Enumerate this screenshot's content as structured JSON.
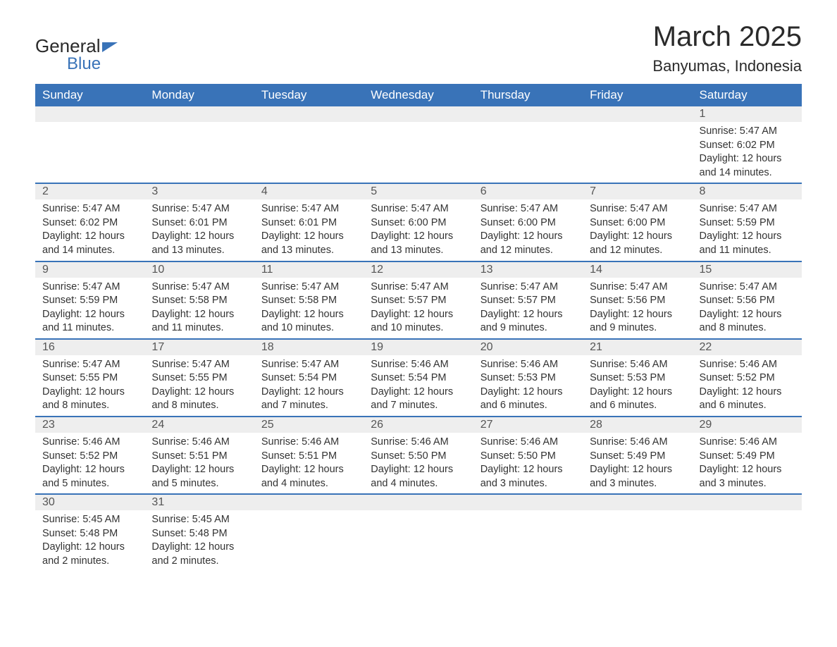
{
  "logo": {
    "general": "General",
    "blue": "Blue"
  },
  "title": "March 2025",
  "location": "Banyumas, Indonesia",
  "dayHeaders": [
    "Sunday",
    "Monday",
    "Tuesday",
    "Wednesday",
    "Thursday",
    "Friday",
    "Saturday"
  ],
  "colors": {
    "headerBg": "#3973b8",
    "headerText": "#ffffff",
    "dateBg": "#eeeeee",
    "textColor": "#333333",
    "borderColor": "#3973b8"
  },
  "weeks": [
    [
      {
        "date": "",
        "sunrise": "",
        "sunset": "",
        "daylight": ""
      },
      {
        "date": "",
        "sunrise": "",
        "sunset": "",
        "daylight": ""
      },
      {
        "date": "",
        "sunrise": "",
        "sunset": "",
        "daylight": ""
      },
      {
        "date": "",
        "sunrise": "",
        "sunset": "",
        "daylight": ""
      },
      {
        "date": "",
        "sunrise": "",
        "sunset": "",
        "daylight": ""
      },
      {
        "date": "",
        "sunrise": "",
        "sunset": "",
        "daylight": ""
      },
      {
        "date": "1",
        "sunrise": "Sunrise: 5:47 AM",
        "sunset": "Sunset: 6:02 PM",
        "daylight": "Daylight: 12 hours and 14 minutes."
      }
    ],
    [
      {
        "date": "2",
        "sunrise": "Sunrise: 5:47 AM",
        "sunset": "Sunset: 6:02 PM",
        "daylight": "Daylight: 12 hours and 14 minutes."
      },
      {
        "date": "3",
        "sunrise": "Sunrise: 5:47 AM",
        "sunset": "Sunset: 6:01 PM",
        "daylight": "Daylight: 12 hours and 13 minutes."
      },
      {
        "date": "4",
        "sunrise": "Sunrise: 5:47 AM",
        "sunset": "Sunset: 6:01 PM",
        "daylight": "Daylight: 12 hours and 13 minutes."
      },
      {
        "date": "5",
        "sunrise": "Sunrise: 5:47 AM",
        "sunset": "Sunset: 6:00 PM",
        "daylight": "Daylight: 12 hours and 13 minutes."
      },
      {
        "date": "6",
        "sunrise": "Sunrise: 5:47 AM",
        "sunset": "Sunset: 6:00 PM",
        "daylight": "Daylight: 12 hours and 12 minutes."
      },
      {
        "date": "7",
        "sunrise": "Sunrise: 5:47 AM",
        "sunset": "Sunset: 6:00 PM",
        "daylight": "Daylight: 12 hours and 12 minutes."
      },
      {
        "date": "8",
        "sunrise": "Sunrise: 5:47 AM",
        "sunset": "Sunset: 5:59 PM",
        "daylight": "Daylight: 12 hours and 11 minutes."
      }
    ],
    [
      {
        "date": "9",
        "sunrise": "Sunrise: 5:47 AM",
        "sunset": "Sunset: 5:59 PM",
        "daylight": "Daylight: 12 hours and 11 minutes."
      },
      {
        "date": "10",
        "sunrise": "Sunrise: 5:47 AM",
        "sunset": "Sunset: 5:58 PM",
        "daylight": "Daylight: 12 hours and 11 minutes."
      },
      {
        "date": "11",
        "sunrise": "Sunrise: 5:47 AM",
        "sunset": "Sunset: 5:58 PM",
        "daylight": "Daylight: 12 hours and 10 minutes."
      },
      {
        "date": "12",
        "sunrise": "Sunrise: 5:47 AM",
        "sunset": "Sunset: 5:57 PM",
        "daylight": "Daylight: 12 hours and 10 minutes."
      },
      {
        "date": "13",
        "sunrise": "Sunrise: 5:47 AM",
        "sunset": "Sunset: 5:57 PM",
        "daylight": "Daylight: 12 hours and 9 minutes."
      },
      {
        "date": "14",
        "sunrise": "Sunrise: 5:47 AM",
        "sunset": "Sunset: 5:56 PM",
        "daylight": "Daylight: 12 hours and 9 minutes."
      },
      {
        "date": "15",
        "sunrise": "Sunrise: 5:47 AM",
        "sunset": "Sunset: 5:56 PM",
        "daylight": "Daylight: 12 hours and 8 minutes."
      }
    ],
    [
      {
        "date": "16",
        "sunrise": "Sunrise: 5:47 AM",
        "sunset": "Sunset: 5:55 PM",
        "daylight": "Daylight: 12 hours and 8 minutes."
      },
      {
        "date": "17",
        "sunrise": "Sunrise: 5:47 AM",
        "sunset": "Sunset: 5:55 PM",
        "daylight": "Daylight: 12 hours and 8 minutes."
      },
      {
        "date": "18",
        "sunrise": "Sunrise: 5:47 AM",
        "sunset": "Sunset: 5:54 PM",
        "daylight": "Daylight: 12 hours and 7 minutes."
      },
      {
        "date": "19",
        "sunrise": "Sunrise: 5:46 AM",
        "sunset": "Sunset: 5:54 PM",
        "daylight": "Daylight: 12 hours and 7 minutes."
      },
      {
        "date": "20",
        "sunrise": "Sunrise: 5:46 AM",
        "sunset": "Sunset: 5:53 PM",
        "daylight": "Daylight: 12 hours and 6 minutes."
      },
      {
        "date": "21",
        "sunrise": "Sunrise: 5:46 AM",
        "sunset": "Sunset: 5:53 PM",
        "daylight": "Daylight: 12 hours and 6 minutes."
      },
      {
        "date": "22",
        "sunrise": "Sunrise: 5:46 AM",
        "sunset": "Sunset: 5:52 PM",
        "daylight": "Daylight: 12 hours and 6 minutes."
      }
    ],
    [
      {
        "date": "23",
        "sunrise": "Sunrise: 5:46 AM",
        "sunset": "Sunset: 5:52 PM",
        "daylight": "Daylight: 12 hours and 5 minutes."
      },
      {
        "date": "24",
        "sunrise": "Sunrise: 5:46 AM",
        "sunset": "Sunset: 5:51 PM",
        "daylight": "Daylight: 12 hours and 5 minutes."
      },
      {
        "date": "25",
        "sunrise": "Sunrise: 5:46 AM",
        "sunset": "Sunset: 5:51 PM",
        "daylight": "Daylight: 12 hours and 4 minutes."
      },
      {
        "date": "26",
        "sunrise": "Sunrise: 5:46 AM",
        "sunset": "Sunset: 5:50 PM",
        "daylight": "Daylight: 12 hours and 4 minutes."
      },
      {
        "date": "27",
        "sunrise": "Sunrise: 5:46 AM",
        "sunset": "Sunset: 5:50 PM",
        "daylight": "Daylight: 12 hours and 3 minutes."
      },
      {
        "date": "28",
        "sunrise": "Sunrise: 5:46 AM",
        "sunset": "Sunset: 5:49 PM",
        "daylight": "Daylight: 12 hours and 3 minutes."
      },
      {
        "date": "29",
        "sunrise": "Sunrise: 5:46 AM",
        "sunset": "Sunset: 5:49 PM",
        "daylight": "Daylight: 12 hours and 3 minutes."
      }
    ],
    [
      {
        "date": "30",
        "sunrise": "Sunrise: 5:45 AM",
        "sunset": "Sunset: 5:48 PM",
        "daylight": "Daylight: 12 hours and 2 minutes."
      },
      {
        "date": "31",
        "sunrise": "Sunrise: 5:45 AM",
        "sunset": "Sunset: 5:48 PM",
        "daylight": "Daylight: 12 hours and 2 minutes."
      },
      {
        "date": "",
        "sunrise": "",
        "sunset": "",
        "daylight": ""
      },
      {
        "date": "",
        "sunrise": "",
        "sunset": "",
        "daylight": ""
      },
      {
        "date": "",
        "sunrise": "",
        "sunset": "",
        "daylight": ""
      },
      {
        "date": "",
        "sunrise": "",
        "sunset": "",
        "daylight": ""
      },
      {
        "date": "",
        "sunrise": "",
        "sunset": "",
        "daylight": ""
      }
    ]
  ]
}
